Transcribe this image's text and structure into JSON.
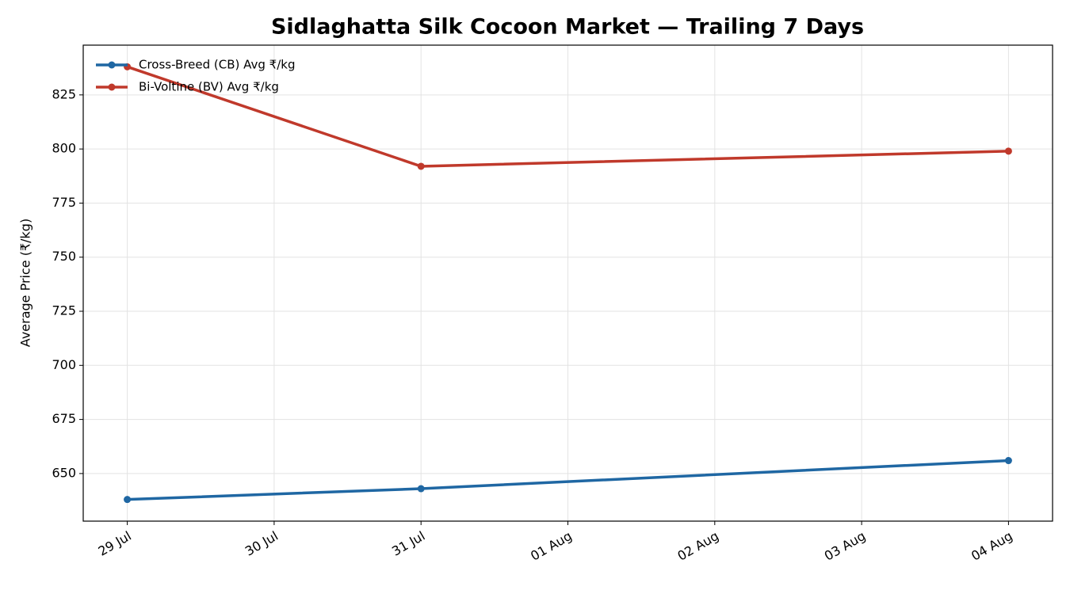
{
  "chart_data": {
    "type": "line",
    "title": "Sidlaghatta Silk Cocoon Market — Trailing 7 Days",
    "y_label": "Average Price (₹/kg)",
    "x": [
      "29 Jul",
      "31 Jul",
      "04 Aug"
    ],
    "xticks": [
      "29 Jul",
      "30 Jul",
      "31 Jul",
      "01 Aug",
      "02 Aug",
      "03 Aug",
      "04 Aug"
    ],
    "series": [
      {
        "name": "Cross-Breed (CB) Avg ₹/kg",
        "color": "#1f67a3",
        "values": [
          638,
          643,
          656
        ]
      },
      {
        "name": "Bi-Voltine (BV) Avg ₹/kg",
        "color": "#c0392b",
        "values": [
          838,
          792,
          799
        ]
      }
    ],
    "ylim": [
      628,
      848
    ],
    "yticks": [
      650,
      675,
      700,
      725,
      750,
      775,
      800,
      825
    ],
    "grid": true,
    "legend": "upper left"
  }
}
